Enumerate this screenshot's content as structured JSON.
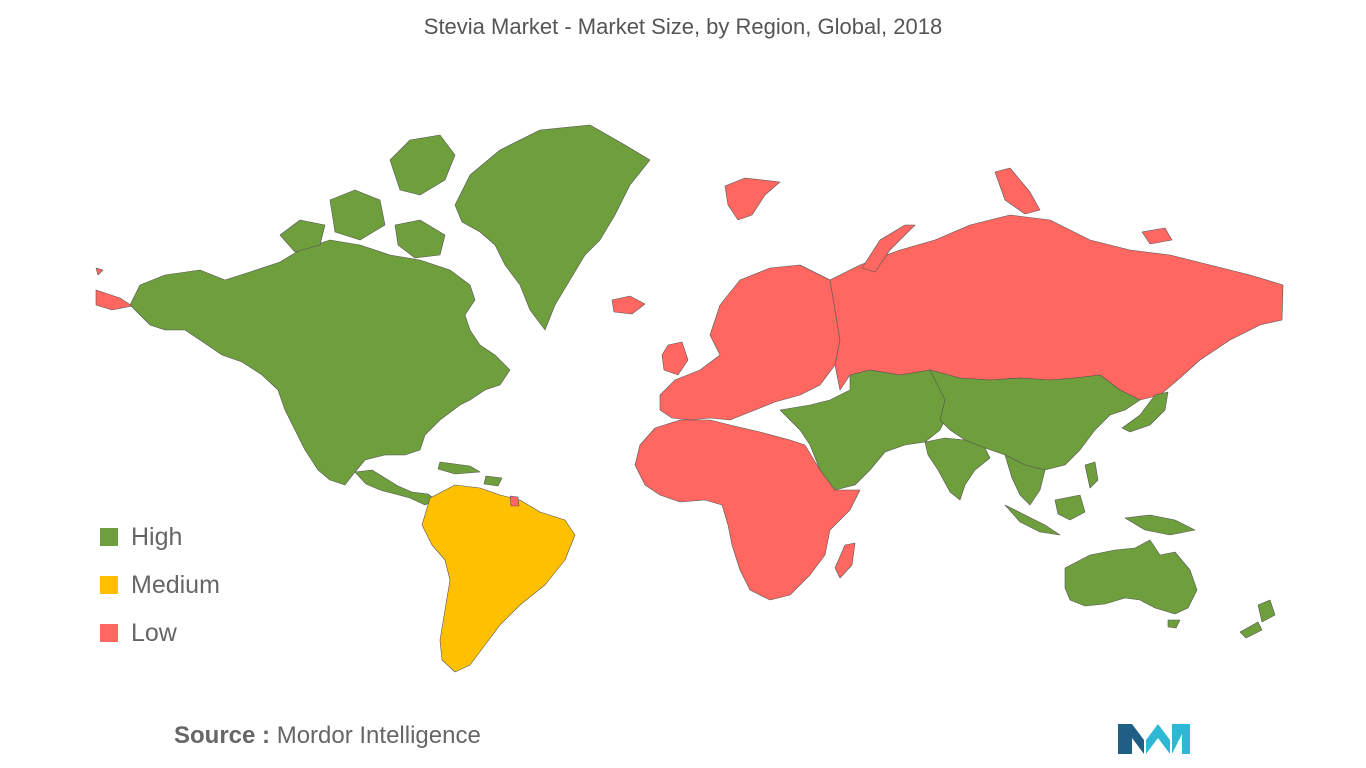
{
  "title": "Stevia Market - Market Size, by Region, Global, 2018",
  "legend": [
    {
      "key": "high",
      "label": "High",
      "color": "#6f9e3d"
    },
    {
      "key": "medium",
      "label": "Medium",
      "color": "#ffc000"
    },
    {
      "key": "low",
      "label": "Low",
      "color": "#ff6760"
    }
  ],
  "regions": [
    {
      "id": "greenland",
      "level": "high"
    },
    {
      "id": "north-america",
      "level": "high"
    },
    {
      "id": "central-america",
      "level": "high"
    },
    {
      "id": "south-america",
      "level": "medium"
    },
    {
      "id": "french-guiana",
      "level": "low"
    },
    {
      "id": "europe",
      "level": "low"
    },
    {
      "id": "russia",
      "level": "low"
    },
    {
      "id": "africa",
      "level": "low"
    },
    {
      "id": "madagascar",
      "level": "low"
    },
    {
      "id": "middle-east-central-asia",
      "level": "high"
    },
    {
      "id": "china-east-asia",
      "level": "high"
    },
    {
      "id": "india",
      "level": "high"
    },
    {
      "id": "southeast-asia",
      "level": "high"
    },
    {
      "id": "japan",
      "level": "high"
    },
    {
      "id": "australia",
      "level": "high"
    },
    {
      "id": "new-zealand",
      "level": "high"
    }
  ],
  "source": {
    "label": "Source :",
    "text": "Mordor Intelligence"
  },
  "logo": {
    "icon": "mordor-intelligence-logo",
    "colors": [
      "#1f5f85",
      "#2fb8d6"
    ]
  }
}
